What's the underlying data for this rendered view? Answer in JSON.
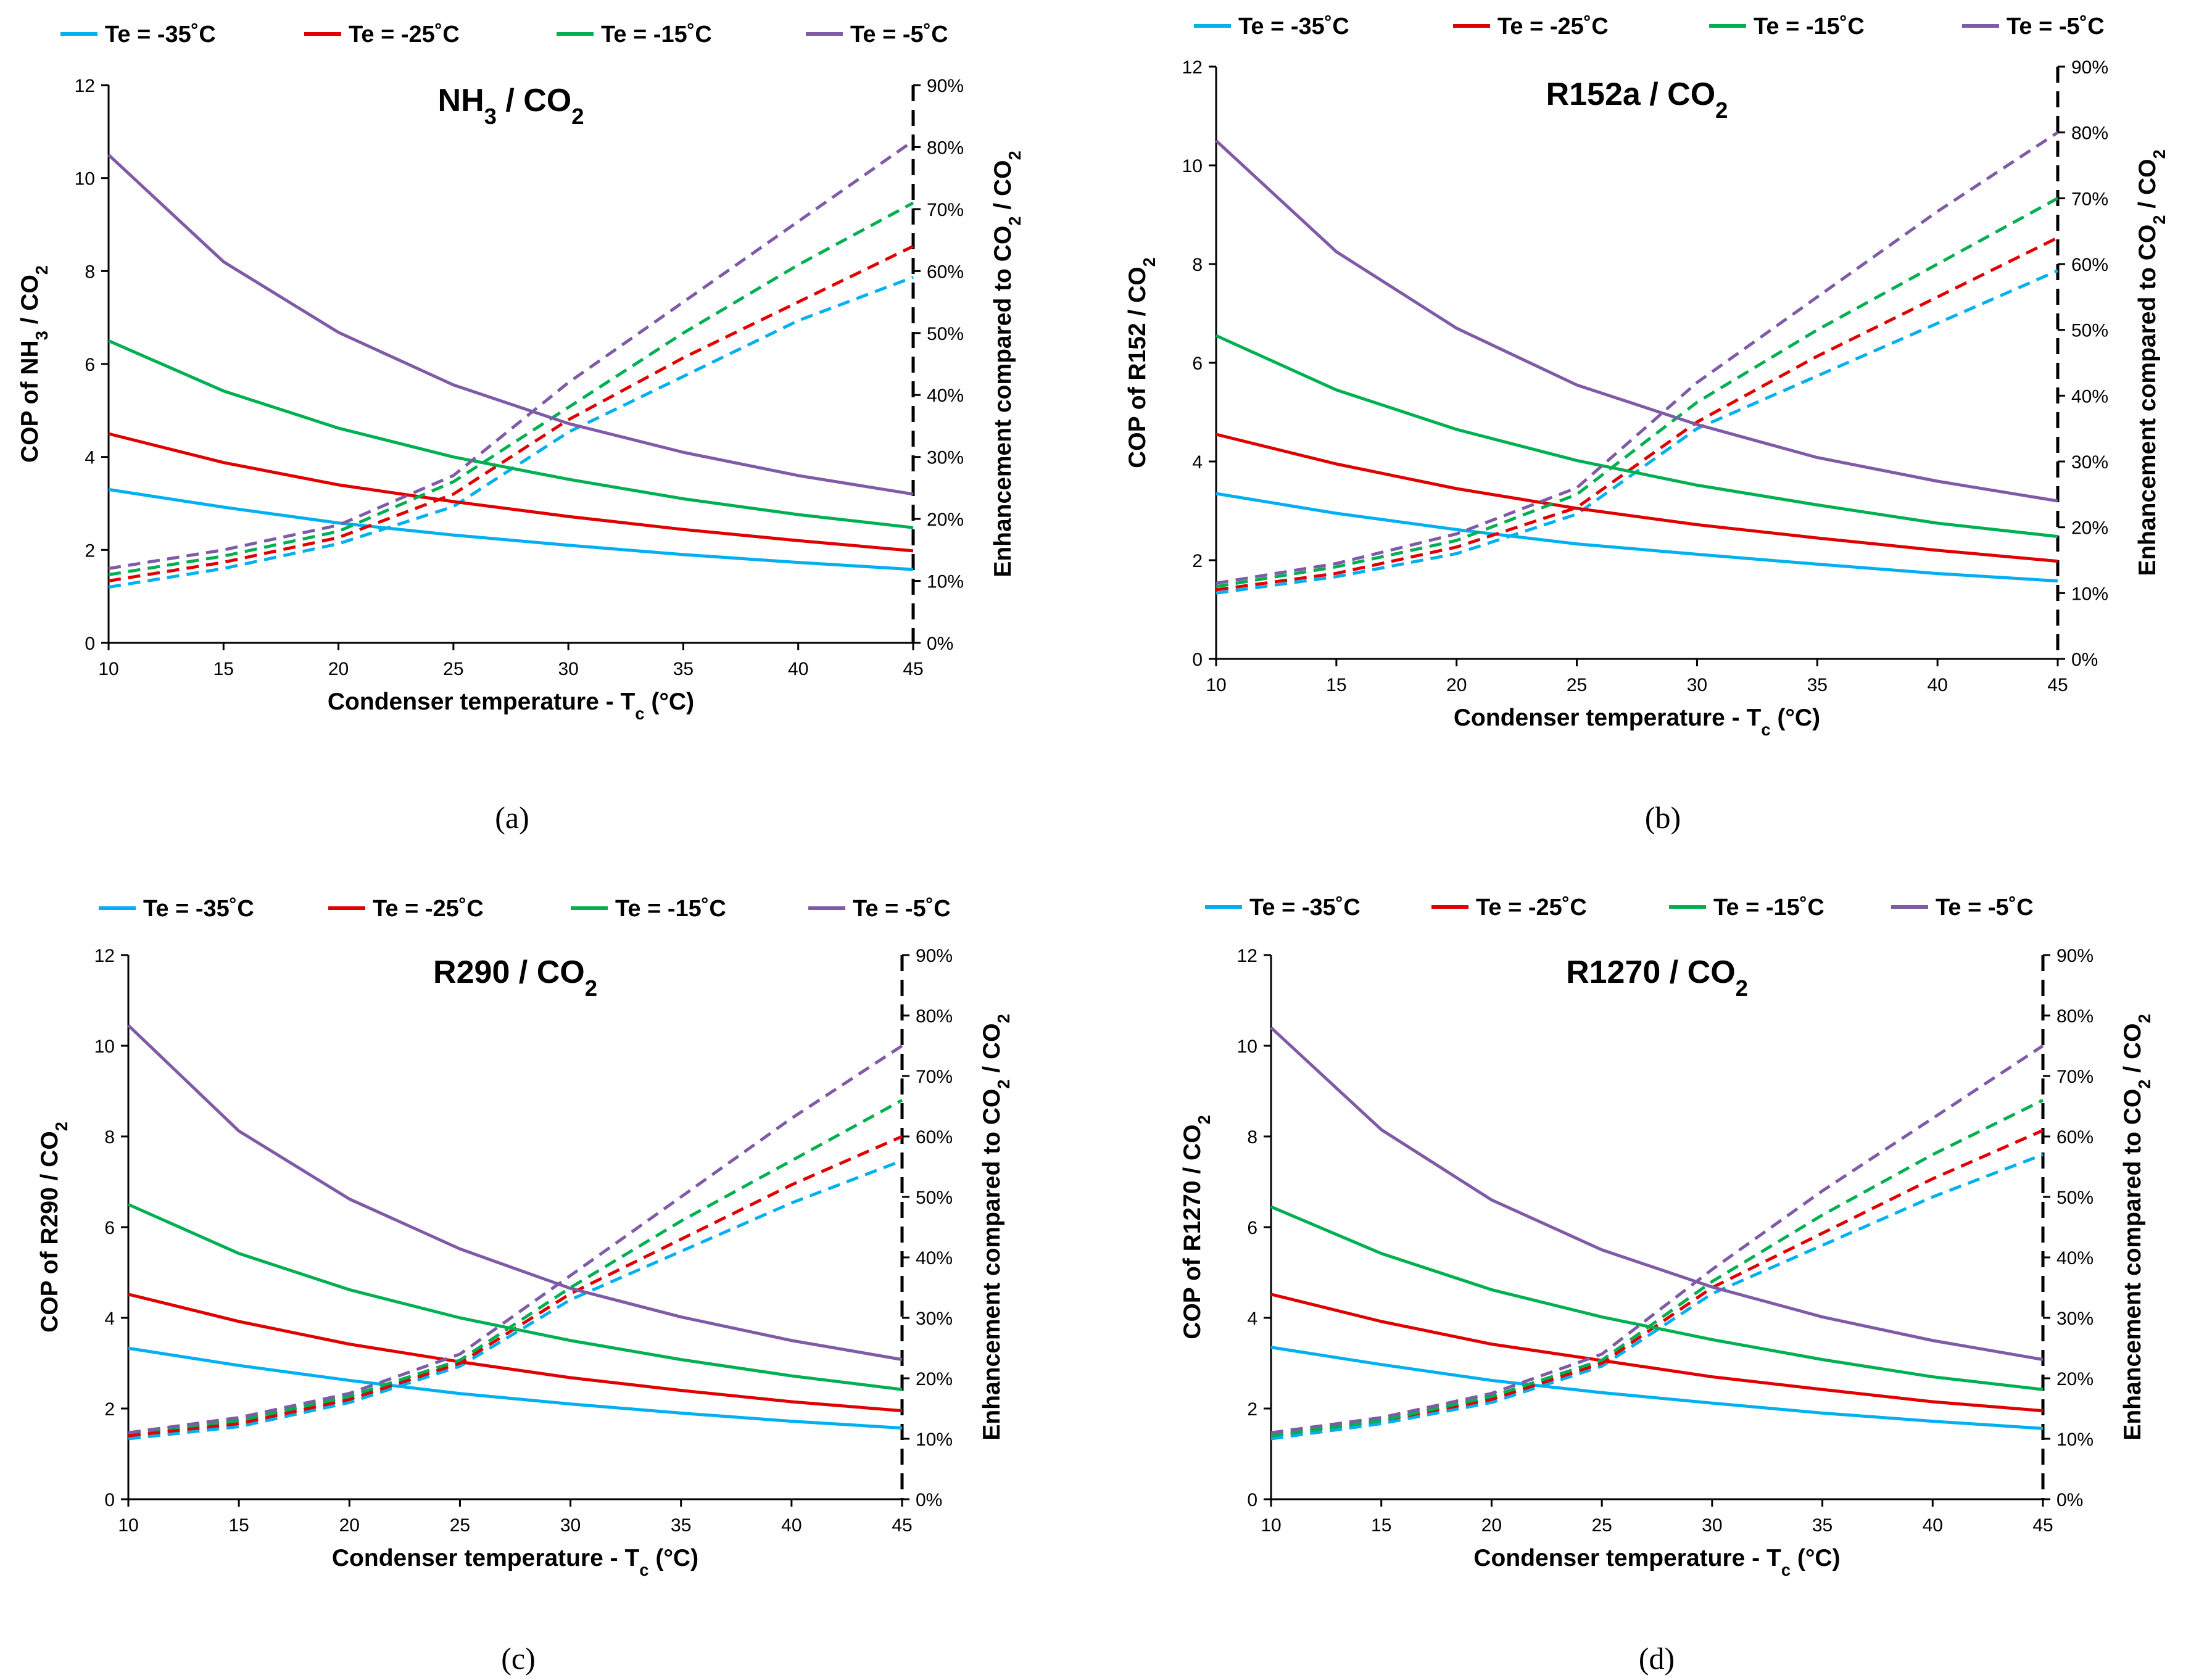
{
  "chart_data": [
    {
      "type": "line",
      "panel": "a",
      "caption": "(a)",
      "title": "NH3 / CO2",
      "title_main": "NH",
      "title_sub1": "3",
      "title_mid": " / CO",
      "title_sub2": "2",
      "xlabel": "Condenser temperature - Tc (°C)",
      "xlabel_main": "Condenser temperature - T",
      "xlabel_sub": "c",
      "xlabel_tail": " (°C)",
      "ylabel": "COP of NH3 / CO2",
      "ylabel_parts": [
        "COP of NH",
        "3",
        " / CO",
        "2"
      ],
      "y2label": "Enhancement compared to CO2 / CO2",
      "y2label_parts": [
        "Enhancement compared to CO",
        "2",
        " / CO",
        "2"
      ],
      "x": [
        10,
        15,
        20,
        25,
        30,
        35,
        40,
        45
      ],
      "xlim": [
        10,
        45
      ],
      "ylim": [
        0,
        12
      ],
      "y2lim": [
        0,
        90
      ],
      "xticks": [
        "10",
        "15",
        "20",
        "25",
        "30",
        "35",
        "40",
        "45"
      ],
      "yticks": [
        "0",
        "2",
        "4",
        "6",
        "8",
        "10",
        "12"
      ],
      "y2ticks": [
        "0%",
        "10%",
        "20%",
        "30%",
        "40%",
        "50%",
        "60%",
        "70%",
        "80%",
        "90%"
      ],
      "legend_position": "top",
      "series": [
        {
          "name": "Te = -35˚C",
          "color": "#00b0f0",
          "cop": [
            3.3,
            2.92,
            2.58,
            2.32,
            2.1,
            1.9,
            1.73,
            1.58
          ],
          "enhancement": [
            9,
            12,
            16,
            22,
            34,
            43,
            52,
            59
          ]
        },
        {
          "name": "Te = -25˚C",
          "color": "#e00000",
          "cop": [
            4.5,
            3.88,
            3.4,
            3.04,
            2.72,
            2.44,
            2.2,
            1.98
          ],
          "enhancement": [
            10,
            13,
            17,
            24,
            36,
            46,
            55,
            64
          ]
        },
        {
          "name": "Te = -15˚C",
          "color": "#00b050",
          "cop": [
            6.5,
            5.42,
            4.62,
            4.0,
            3.52,
            3.1,
            2.76,
            2.48
          ],
          "enhancement": [
            11,
            14,
            18,
            26,
            38,
            50,
            61,
            71
          ]
        },
        {
          "name": "Te = -5˚C",
          "color": "#7f5aa6",
          "cop": [
            10.5,
            8.2,
            6.68,
            5.55,
            4.72,
            4.1,
            3.6,
            3.2
          ],
          "enhancement": [
            12,
            15,
            19,
            27,
            42,
            55,
            68,
            81
          ]
        }
      ]
    },
    {
      "type": "line",
      "panel": "b",
      "caption": "(b)",
      "title": "R152a / CO2",
      "title_main": "R152a",
      "title_sub1": "",
      "title_mid": " / CO",
      "title_sub2": "2",
      "xlabel": "Condenser temperature - Tc (°C)",
      "xlabel_main": "Condenser temperature - T",
      "xlabel_sub": "c",
      "xlabel_tail": " (°C)",
      "ylabel": "COP of R152 / CO2",
      "ylabel_parts": [
        "COP of R152 / CO",
        "2",
        "",
        ""
      ],
      "y2label": "Enhancement compared to CO2 / CO2",
      "y2label_parts": [
        "Enhancement compared to CO",
        "2",
        " / CO",
        "2"
      ],
      "x": [
        10,
        15,
        20,
        25,
        30,
        35,
        40,
        45
      ],
      "xlim": [
        10,
        45
      ],
      "ylim": [
        0,
        12
      ],
      "y2lim": [
        0,
        90
      ],
      "xticks": [
        "10",
        "15",
        "20",
        "25",
        "30",
        "35",
        "40",
        "45"
      ],
      "yticks": [
        "0",
        "2",
        "4",
        "6",
        "8",
        "10",
        "12"
      ],
      "y2ticks": [
        "0%",
        "10%",
        "20%",
        "30%",
        "40%",
        "50%",
        "60%",
        "70%",
        "80%",
        "90%"
      ],
      "legend_position": "top",
      "series": [
        {
          "name": "Te = -35˚C",
          "color": "#00b0f0",
          "cop": [
            3.35,
            2.95,
            2.62,
            2.33,
            2.12,
            1.92,
            1.73,
            1.58
          ],
          "enhancement": [
            10,
            12.5,
            16,
            22,
            35,
            43,
            51,
            59
          ]
        },
        {
          "name": "Te = -25˚C",
          "color": "#e00000",
          "cop": [
            4.55,
            3.95,
            3.45,
            3.05,
            2.72,
            2.45,
            2.2,
            1.98
          ],
          "enhancement": [
            10.5,
            13,
            17,
            23,
            36,
            46,
            55,
            64
          ]
        },
        {
          "name": "Te = -15˚C",
          "color": "#00b050",
          "cop": [
            6.55,
            5.45,
            4.65,
            4.02,
            3.52,
            3.12,
            2.75,
            2.48
          ],
          "enhancement": [
            11,
            14,
            18,
            25,
            39,
            50,
            60,
            70
          ]
        },
        {
          "name": "Te = -5˚C",
          "color": "#7f5aa6",
          "cop": [
            10.5,
            8.25,
            6.7,
            5.55,
            4.75,
            4.08,
            3.6,
            3.2
          ],
          "enhancement": [
            11.5,
            14.5,
            19,
            26,
            42,
            55,
            68,
            80
          ]
        }
      ]
    },
    {
      "type": "line",
      "panel": "c",
      "caption": "(c)",
      "title": "R290 / CO2",
      "title_main": "R290",
      "title_sub1": "",
      "title_mid": " / CO",
      "title_sub2": "2",
      "xlabel": "Condenser temperature - Tc (°C)",
      "xlabel_main": "Condenser temperature - T",
      "xlabel_sub": "c",
      "xlabel_tail": " (°C)",
      "ylabel": "COP of R290 / CO2",
      "ylabel_parts": [
        "COP of R290 / CO",
        "2",
        "",
        ""
      ],
      "y2label": "Enhancement compared to CO2 / CO2",
      "y2label_parts": [
        "Enhancement compared to CO",
        "2",
        " / CO",
        "2"
      ],
      "x": [
        10,
        15,
        20,
        25,
        30,
        35,
        40,
        45
      ],
      "xlim": [
        10,
        45
      ],
      "ylim": [
        0,
        12
      ],
      "y2lim": [
        0,
        90
      ],
      "xticks": [
        "10",
        "15",
        "20",
        "25",
        "30",
        "35",
        "40",
        "45"
      ],
      "yticks": [
        "0",
        "2",
        "4",
        "6",
        "8",
        "10",
        "12"
      ],
      "y2ticks": [
        "0%",
        "10%",
        "20%",
        "30%",
        "40%",
        "50%",
        "60%",
        "70%",
        "80%",
        "90%"
      ],
      "legend_position": "top",
      "series": [
        {
          "name": "Te = -35˚C",
          "color": "#00b0f0",
          "cop": [
            3.33,
            2.95,
            2.62,
            2.33,
            2.1,
            1.9,
            1.72,
            1.57
          ],
          "enhancement": [
            10,
            12,
            16,
            22,
            33,
            41,
            49,
            56
          ]
        },
        {
          "name": "Te = -25˚C",
          "color": "#e00000",
          "cop": [
            4.52,
            3.92,
            3.42,
            3.03,
            2.68,
            2.4,
            2.15,
            1.95
          ],
          "enhancement": [
            10.5,
            12.5,
            16.5,
            22.5,
            34,
            43,
            52,
            60
          ]
        },
        {
          "name": "Te = -15˚C",
          "color": "#00b050",
          "cop": [
            6.5,
            5.42,
            4.62,
            4.0,
            3.5,
            3.08,
            2.72,
            2.42
          ],
          "enhancement": [
            11,
            13,
            17,
            23,
            35,
            46,
            56,
            66
          ]
        },
        {
          "name": "Te = -5˚C",
          "color": "#7f5aa6",
          "cop": [
            10.45,
            8.12,
            6.62,
            5.52,
            4.65,
            4.02,
            3.5,
            3.08
          ],
          "enhancement": [
            11,
            13.5,
            17.5,
            24,
            37,
            50,
            63,
            75
          ]
        }
      ]
    },
    {
      "type": "line",
      "panel": "d",
      "caption": "(d)",
      "title": "R1270 / CO2",
      "title_main": "R1270",
      "title_sub1": "",
      "title_mid": " / CO",
      "title_sub2": "2",
      "xlabel": "Condenser temperature - Tc (°C)",
      "xlabel_main": "Condenser temperature - T",
      "xlabel_sub": "c",
      "xlabel_tail": " (°C)",
      "ylabel": "COP of R1270 / CO2",
      "ylabel_parts": [
        "COP of R1270 / CO",
        "2",
        "",
        ""
      ],
      "y2label": "Enhancement compared to CO2 / CO2",
      "y2label_parts": [
        "Enhancement compared to CO",
        "2",
        " / CO",
        "2"
      ],
      "x": [
        10,
        15,
        20,
        25,
        30,
        35,
        40,
        45
      ],
      "xlim": [
        10,
        45
      ],
      "ylim": [
        0,
        12
      ],
      "y2lim": [
        0,
        90
      ],
      "xticks": [
        "10",
        "15",
        "20",
        "25",
        "30",
        "35",
        "40",
        "45"
      ],
      "yticks": [
        "0",
        "2",
        "4",
        "6",
        "8",
        "10",
        "12"
      ],
      "y2ticks": [
        "0%",
        "10%",
        "20%",
        "30%",
        "40%",
        "50%",
        "60%",
        "70%",
        "80%",
        "90%"
      ],
      "legend_position": "top",
      "series": [
        {
          "name": "Te = -35˚C",
          "color": "#00b0f0",
          "cop": [
            3.35,
            2.97,
            2.62,
            2.35,
            2.12,
            1.9,
            1.72,
            1.56
          ],
          "enhancement": [
            10,
            12.5,
            16,
            22,
            34,
            42,
            50,
            57
          ]
        },
        {
          "name": "Te = -25˚C",
          "color": "#e00000",
          "cop": [
            4.52,
            3.92,
            3.42,
            3.06,
            2.7,
            2.42,
            2.15,
            1.95
          ],
          "enhancement": [
            10.5,
            13,
            16.5,
            22.5,
            35,
            44,
            53,
            61
          ]
        },
        {
          "name": "Te = -15˚C",
          "color": "#00b050",
          "cop": [
            6.45,
            5.42,
            4.62,
            4.02,
            3.52,
            3.08,
            2.7,
            2.42
          ],
          "enhancement": [
            10.5,
            13,
            17,
            23,
            36,
            47,
            57,
            66
          ]
        },
        {
          "name": "Te = -5˚C",
          "color": "#7f5aa6",
          "cop": [
            10.4,
            8.15,
            6.6,
            5.5,
            4.68,
            4.02,
            3.5,
            3.08
          ],
          "enhancement": [
            11,
            13.5,
            17.5,
            24,
            38,
            51,
            63,
            75
          ]
        }
      ]
    }
  ]
}
